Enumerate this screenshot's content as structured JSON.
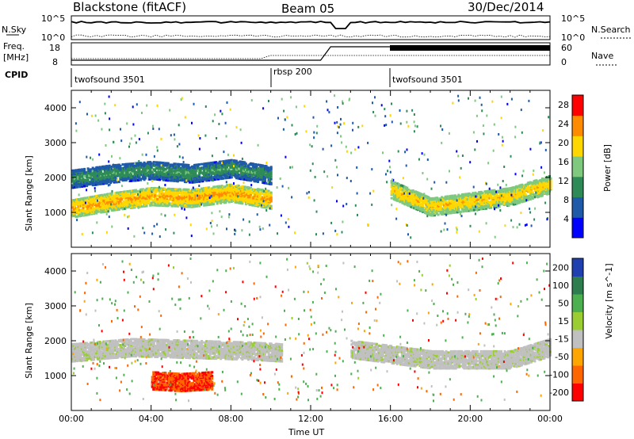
{
  "header": {
    "station": "Blackstone (fitACF)",
    "beam": "Beam 05",
    "date": "30/Dec/2014"
  },
  "top_panels": {
    "nsky_label": "N.Sky",
    "nsky_ticks": [
      "10^5",
      "10^0"
    ],
    "nsearch_label": "N.Search",
    "nsearch_ticks": [
      "10^5",
      "10^0"
    ],
    "freq_label": "Freq.",
    "freq_unit": "[MHz]",
    "freq_ticks": [
      "18",
      "8"
    ],
    "nave_label": "Nave",
    "nave_ticks": [
      "60",
      "0"
    ],
    "cpid_label": "CPID",
    "cpid_segments": [
      {
        "label": "twofsound 3501",
        "start_h": 0,
        "end_h": 10
      },
      {
        "label": "rbsp 200",
        "start_h": 10,
        "end_h": 16
      },
      {
        "label": "twofsound 3501",
        "start_h": 16,
        "end_h": 24
      }
    ]
  },
  "chart_data": [
    {
      "type": "heatmap",
      "name": "power",
      "xlabel": "",
      "ylabel": "Slant Range [km]",
      "xlim": [
        0,
        24
      ],
      "ylim": [
        0,
        4500
      ],
      "yticks": [
        "1000",
        "2000",
        "3000",
        "4000"
      ],
      "colorbar": {
        "label": "Power [dB]",
        "ticks": [
          "4",
          "8",
          "12",
          "16",
          "20",
          "24",
          "28"
        ],
        "range": [
          0,
          30
        ],
        "colors": [
          "#0000ff",
          "#1e5aa8",
          "#2e8b57",
          "#7fc97f",
          "#ffd700",
          "#ff8c00",
          "#ff0000"
        ]
      },
      "bands": [
        {
          "t": [
            0,
            2,
            4,
            6,
            8,
            10
          ],
          "range_km": [
            1150,
            1350,
            1500,
            1450,
            1600,
            1400
          ],
          "value_db": 24
        },
        {
          "t": [
            0,
            2,
            4,
            6,
            8,
            10
          ],
          "range_km": [
            2000,
            2150,
            2250,
            2150,
            2300,
            2100
          ],
          "value_db": 12
        },
        {
          "t": [
            16,
            18,
            20,
            22,
            24
          ],
          "range_km": [
            1700,
            1200,
            1350,
            1500,
            1850
          ],
          "value_db": 22
        }
      ]
    },
    {
      "type": "heatmap",
      "name": "velocity",
      "xlabel": "Time UT",
      "ylabel": "Slant Range [km]",
      "xlim": [
        0,
        24
      ],
      "ylim": [
        0,
        4500
      ],
      "xticks": [
        "00:00",
        "04:00",
        "08:00",
        "12:00",
        "16:00",
        "20:00",
        "00:00"
      ],
      "yticks": [
        "1000",
        "2000",
        "3000",
        "4000"
      ],
      "colorbar": {
        "label": "Velocity [m s^-1]",
        "ticks": [
          "200",
          "100",
          "50",
          "15",
          "-15",
          "-50",
          "-100",
          "-200"
        ],
        "colors": [
          "#2040b0",
          "#2e7d4f",
          "#4caf50",
          "#9acd32",
          "#c0c0c0",
          "#ffa500",
          "#ff6600",
          "#ff0000"
        ]
      },
      "bands": [
        {
          "t": [
            0,
            3,
            6,
            9,
            10.5
          ],
          "range_km": [
            1700,
            1850,
            1800,
            1750,
            1700
          ],
          "value_ms": 0
        },
        {
          "t": [
            4,
            5.5,
            7
          ],
          "range_km": [
            900,
            850,
            900
          ],
          "value_ms": -150
        },
        {
          "t": [
            14,
            18,
            22,
            24
          ],
          "range_km": [
            1800,
            1500,
            1500,
            1850
          ],
          "value_ms": 0
        }
      ]
    }
  ]
}
